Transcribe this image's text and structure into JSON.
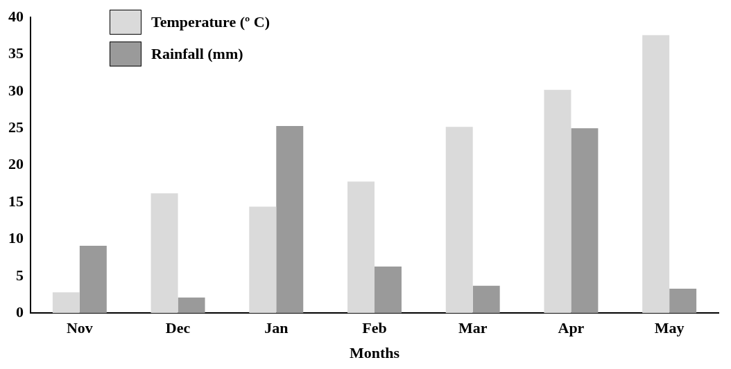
{
  "chart_data": {
    "type": "bar",
    "xlabel": "Months",
    "categories": [
      "Nov",
      "Dec",
      "Jan",
      "Feb",
      "Mar",
      "Apr",
      "May"
    ],
    "series": [
      {
        "name": "Temperature (º C)",
        "color": "#dadada",
        "values": [
          2.8,
          16.2,
          14.4,
          17.8,
          25.2,
          30.2,
          37.6
        ]
      },
      {
        "name": "Rainfall (mm)",
        "color": "#9a9a9a",
        "values": [
          9.1,
          2.1,
          25.3,
          6.3,
          3.7,
          25.0,
          3.3
        ]
      }
    ],
    "ylim": [
      0,
      40
    ],
    "yticks": [
      0,
      5,
      10,
      15,
      20,
      25,
      30,
      35,
      40
    ],
    "grid": false,
    "legend": "top left"
  }
}
